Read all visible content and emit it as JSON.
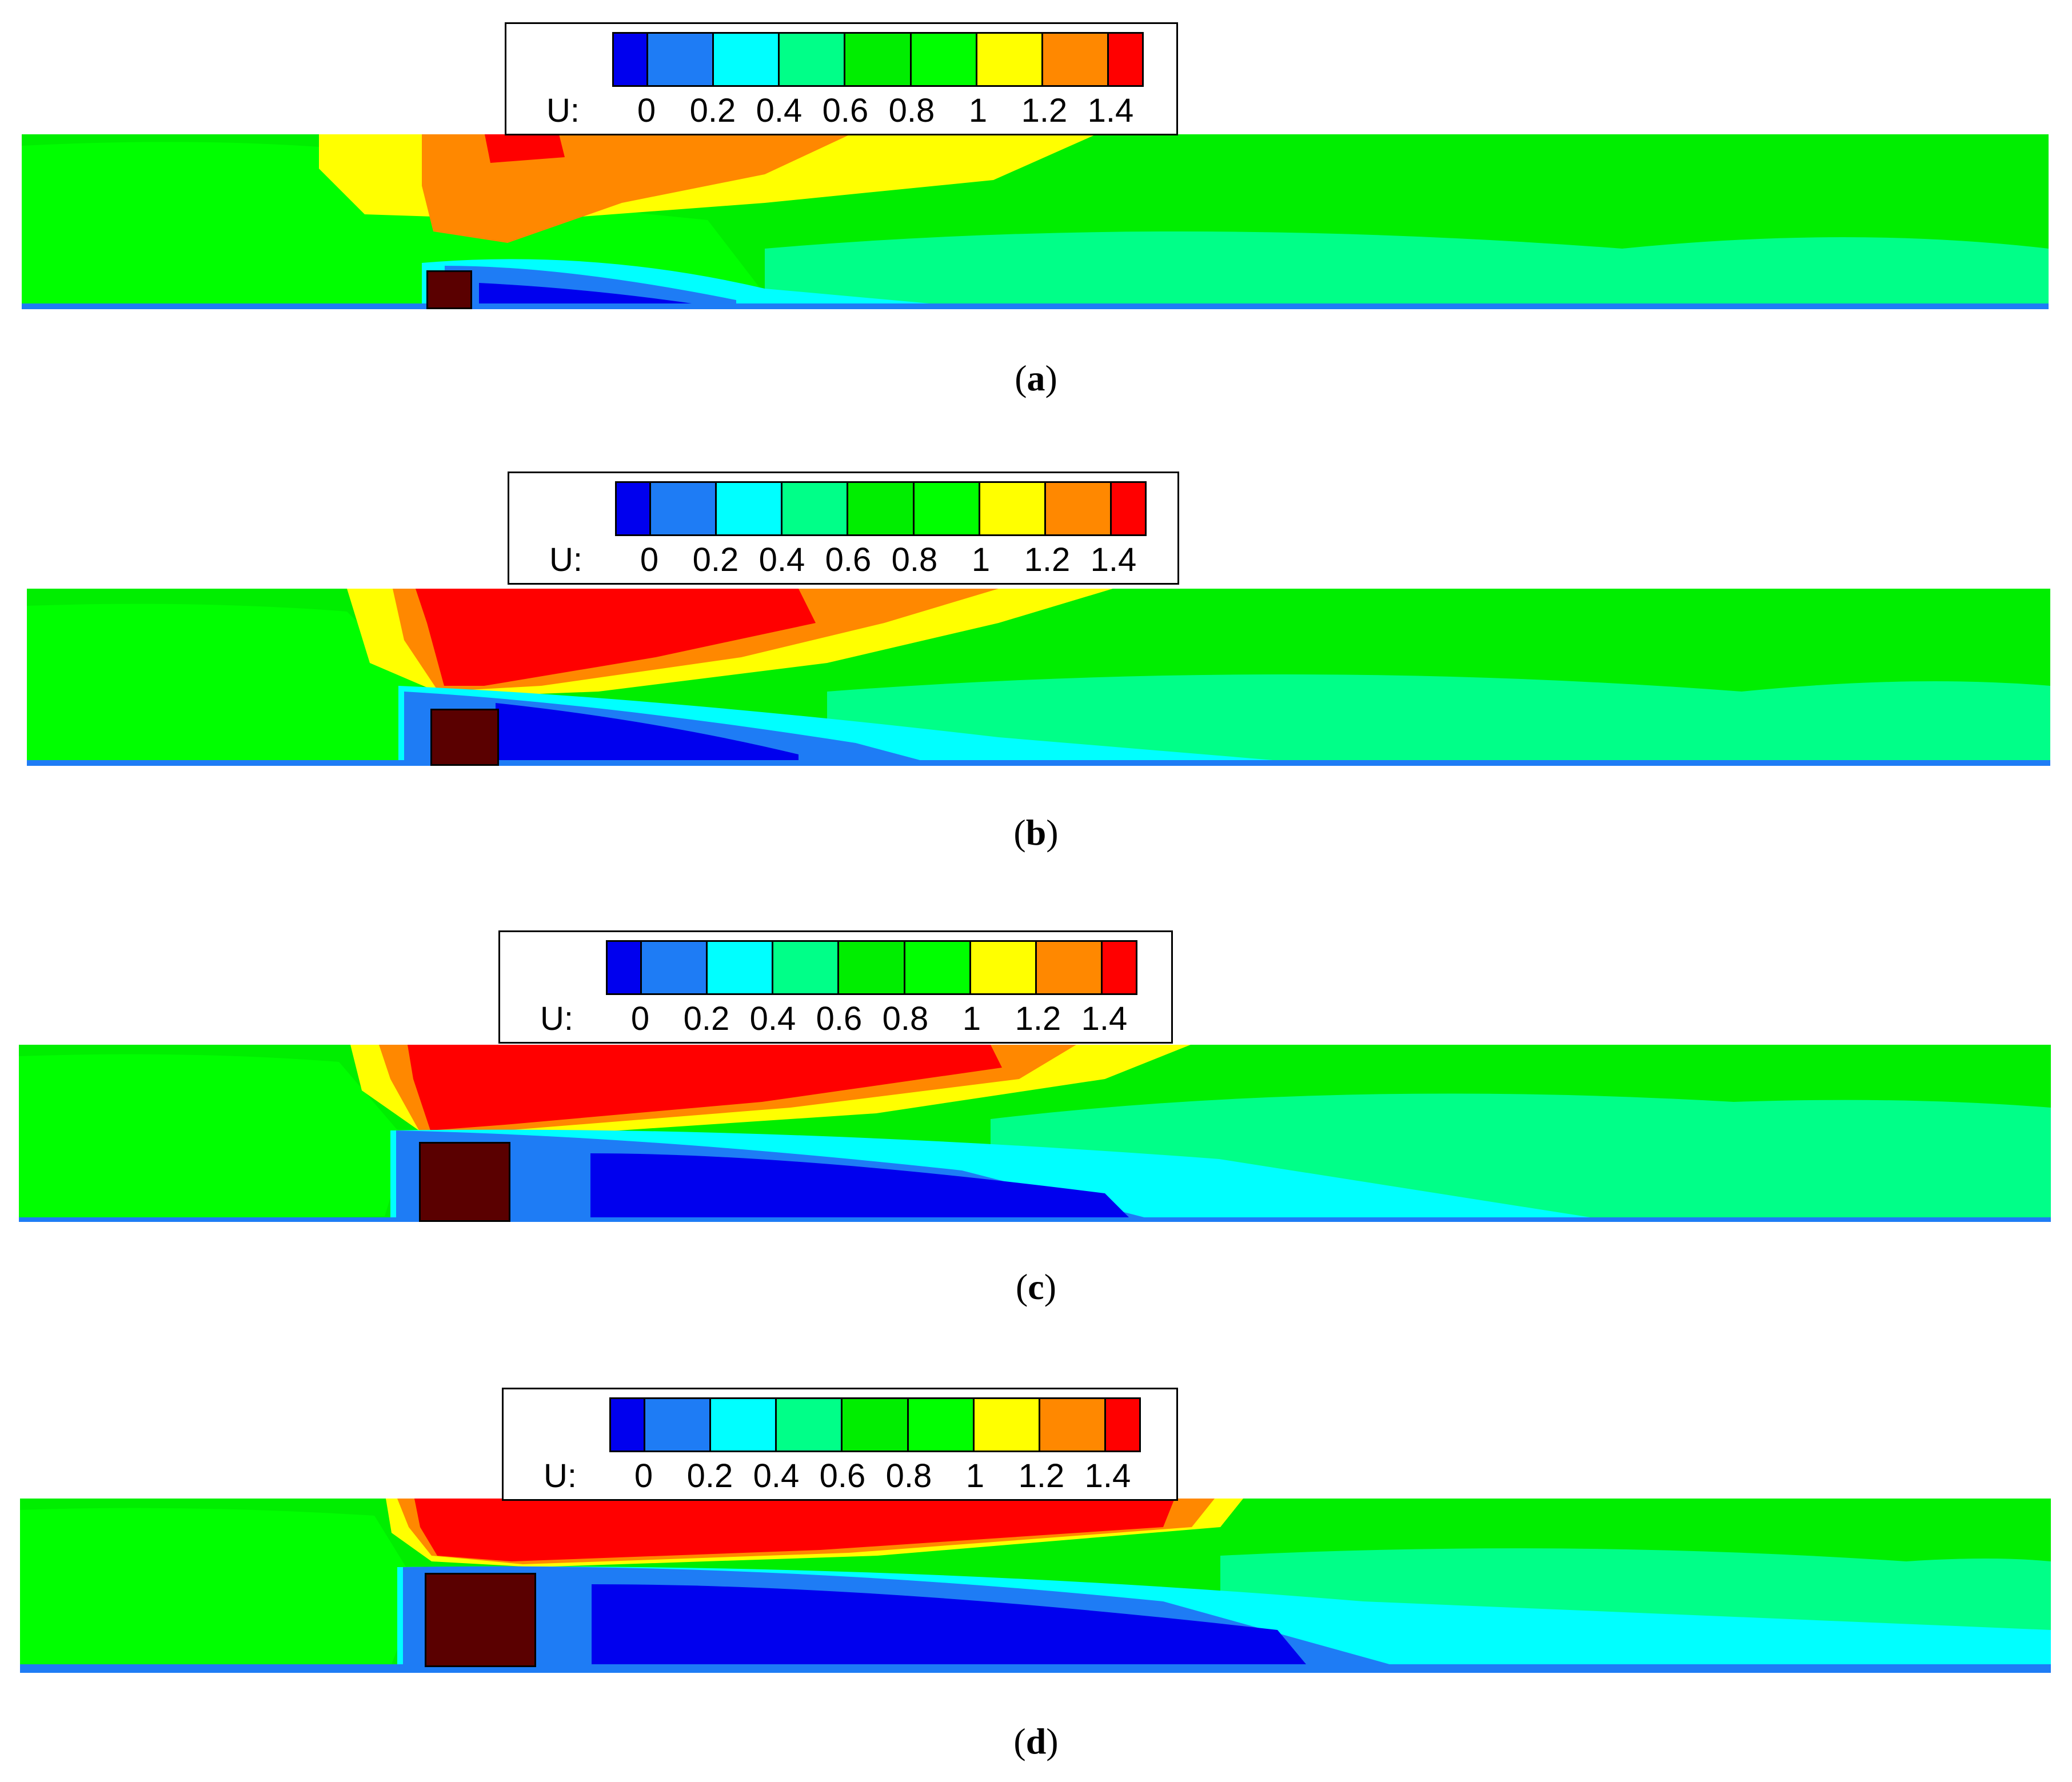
{
  "legend": {
    "variable_label": "U:",
    "tick_labels": [
      "0",
      "0.2",
      "0.4",
      "0.6",
      "0.8",
      "1",
      "1.2",
      "1.4"
    ],
    "colors": [
      "#0000ee",
      "#1e7cf5",
      "#00ffff",
      "#00ff88",
      "#00ee00",
      "#00ff00",
      "#ffff00",
      "#ff8800",
      "#ff0000"
    ]
  },
  "obstacle_color": "#5a0000",
  "panels": [
    {
      "id": "a",
      "label_open": "(",
      "label_letter": "a",
      "label_close": ")"
    },
    {
      "id": "b",
      "label_open": "(",
      "label_letter": "b",
      "label_close": ")"
    },
    {
      "id": "c",
      "label_open": "(",
      "label_letter": "c",
      "label_close": ")"
    },
    {
      "id": "d",
      "label_open": "(",
      "label_letter": "d",
      "label_close": ")"
    }
  ]
}
